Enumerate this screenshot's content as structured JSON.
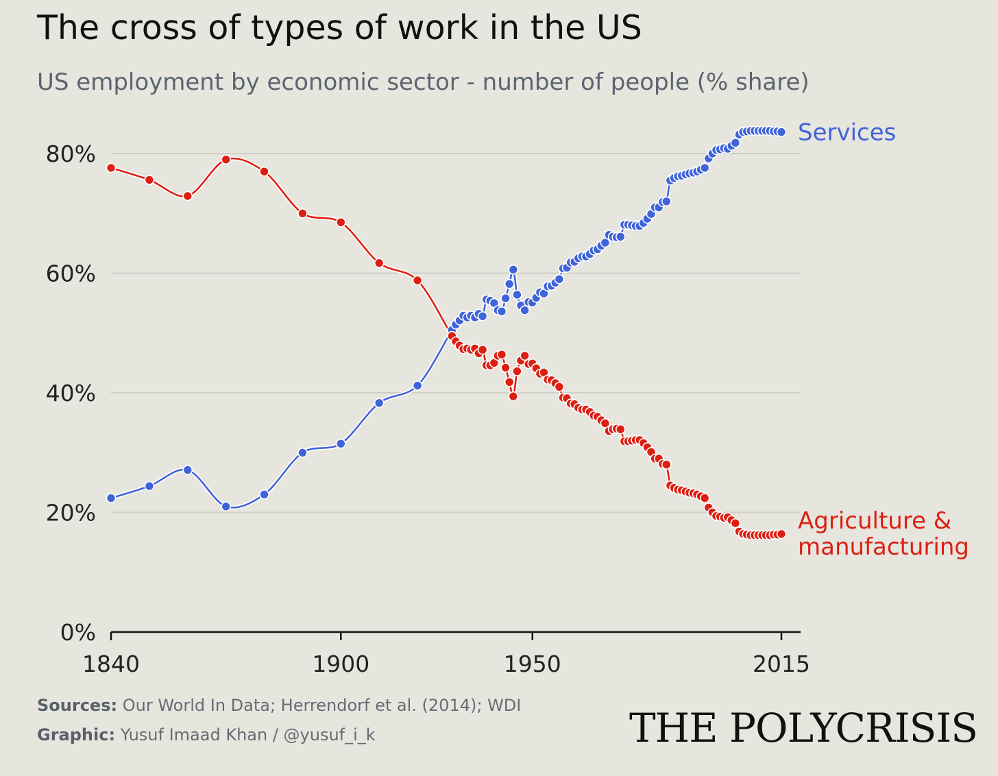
{
  "header": {
    "title": "The cross of types of work in the US",
    "subtitle": "US employment by economic sector - number of people (% share)"
  },
  "footer": {
    "sources_label": "Sources:",
    "sources_text": "Our World In Data; Herrendorf et al. (2014); WDI",
    "graphic_label": "Graphic:",
    "graphic_text": "Yusuf Imaad Khan / @yusuf_i_k"
  },
  "brand": {
    "name": "THE POLYCRISIS"
  },
  "colors": {
    "background": "#e6e6df",
    "services": "#3f63d8",
    "agriculture": "#dd1f12",
    "grid": "#cfcfc8"
  },
  "chart_data": {
    "type": "line",
    "title": "The cross of types of work in the US",
    "subtitle": "US employment by economic sector - number of people (% share)",
    "xlabel": "",
    "ylabel": "",
    "xlim": [
      1840,
      2015
    ],
    "ylim": [
      0,
      80
    ],
    "x_ticks": [
      1840,
      1900,
      1950,
      2015
    ],
    "y_ticks": [
      0,
      20,
      40,
      60,
      80
    ],
    "y_tick_labels": [
      "0%",
      "20%",
      "40%",
      "60%",
      "80%"
    ],
    "grid": "horizontal",
    "series": [
      {
        "name": "Services",
        "color": "#3f63d8",
        "x": [
          1840,
          1850,
          1860,
          1870,
          1880,
          1890,
          1900,
          1910,
          1920,
          1929,
          1930,
          1931,
          1932,
          1933,
          1934,
          1935,
          1936,
          1937,
          1938,
          1939,
          1940,
          1941,
          1942,
          1943,
          1944,
          1945,
          1946,
          1947,
          1948,
          1949,
          1950,
          1951,
          1952,
          1953,
          1954,
          1955,
          1956,
          1957,
          1958,
          1959,
          1960,
          1961,
          1962,
          1963,
          1964,
          1965,
          1966,
          1967,
          1968,
          1969,
          1970,
          1971,
          1972,
          1973,
          1974,
          1975,
          1976,
          1977,
          1978,
          1979,
          1980,
          1981,
          1982,
          1983,
          1984,
          1985,
          1986,
          1987,
          1988,
          1989,
          1990,
          1991,
          1992,
          1993,
          1994,
          1995,
          1996,
          1997,
          1998,
          1999,
          2000,
          2001,
          2002,
          2003,
          2004,
          2005,
          2006,
          2007,
          2008,
          2009,
          2010,
          2011,
          2012,
          2013,
          2014,
          2015
        ],
        "values": [
          22.4,
          24.4,
          27.1,
          21.0,
          23.0,
          30.0,
          31.5,
          38.3,
          41.2,
          50.5,
          51.4,
          52.1,
          52.9,
          52.6,
          52.9,
          52.6,
          53.2,
          52.8,
          55.6,
          55.4,
          55.0,
          53.8,
          53.6,
          55.8,
          58.2,
          60.6,
          56.4,
          54.6,
          53.8,
          55.2,
          55.1,
          55.9,
          56.8,
          56.6,
          57.8,
          57.9,
          58.4,
          59.0,
          60.8,
          60.9,
          61.8,
          61.9,
          62.5,
          62.8,
          62.8,
          63.2,
          63.8,
          64.0,
          64.6,
          65.1,
          66.4,
          66.1,
          66.0,
          66.1,
          68.1,
          68.1,
          68.0,
          67.9,
          67.9,
          68.4,
          69.1,
          69.9,
          71.0,
          71.0,
          71.9,
          72.0,
          75.5,
          75.9,
          76.2,
          76.3,
          76.5,
          76.7,
          76.8,
          77.0,
          77.3,
          77.6,
          79.2,
          80.0,
          80.6,
          80.7,
          80.9,
          80.8,
          81.3,
          81.8,
          83.2,
          83.6,
          83.7,
          83.8,
          83.8,
          83.8,
          83.8,
          83.8,
          83.8,
          83.7,
          83.7,
          83.6
        ]
      },
      {
        "name": "Agriculture & manufacturing",
        "color": "#dd1f12",
        "x": [
          1840,
          1850,
          1860,
          1870,
          1880,
          1890,
          1900,
          1910,
          1920,
          1929,
          1930,
          1931,
          1932,
          1933,
          1934,
          1935,
          1936,
          1937,
          1938,
          1939,
          1940,
          1941,
          1942,
          1943,
          1944,
          1945,
          1946,
          1947,
          1948,
          1949,
          1950,
          1951,
          1952,
          1953,
          1954,
          1955,
          1956,
          1957,
          1958,
          1959,
          1960,
          1961,
          1962,
          1963,
          1964,
          1965,
          1966,
          1967,
          1968,
          1969,
          1970,
          1971,
          1972,
          1973,
          1974,
          1975,
          1976,
          1977,
          1978,
          1979,
          1980,
          1981,
          1982,
          1983,
          1984,
          1985,
          1986,
          1987,
          1988,
          1989,
          1990,
          1991,
          1992,
          1993,
          1994,
          1995,
          1996,
          1997,
          1998,
          1999,
          2000,
          2001,
          2002,
          2003,
          2004,
          2005,
          2006,
          2007,
          2008,
          2009,
          2010,
          2011,
          2012,
          2013,
          2014,
          2015
        ],
        "values": [
          77.6,
          75.6,
          72.9,
          79.0,
          77.0,
          70.0,
          68.5,
          61.7,
          58.8,
          49.5,
          48.6,
          47.9,
          47.3,
          47.4,
          47.2,
          47.4,
          46.6,
          47.2,
          44.6,
          44.6,
          45.0,
          46.2,
          46.4,
          44.2,
          41.8,
          39.4,
          43.6,
          45.4,
          46.2,
          44.8,
          44.9,
          44.1,
          43.2,
          43.4,
          42.2,
          42.1,
          41.6,
          41.0,
          39.2,
          39.1,
          38.2,
          38.1,
          37.5,
          37.2,
          37.2,
          36.8,
          36.2,
          36.0,
          35.4,
          34.9,
          33.6,
          33.9,
          34.0,
          33.9,
          31.9,
          31.9,
          32.0,
          32.1,
          32.1,
          31.6,
          30.9,
          30.1,
          29.0,
          29.0,
          28.1,
          28.0,
          24.5,
          24.1,
          23.8,
          23.7,
          23.5,
          23.3,
          23.2,
          23.0,
          22.7,
          22.4,
          20.8,
          20.0,
          19.4,
          19.3,
          19.1,
          19.2,
          18.7,
          18.2,
          16.8,
          16.4,
          16.3,
          16.2,
          16.2,
          16.2,
          16.2,
          16.2,
          16.2,
          16.3,
          16.3,
          16.4
        ]
      }
    ],
    "legend": "direct labels at line ends"
  }
}
